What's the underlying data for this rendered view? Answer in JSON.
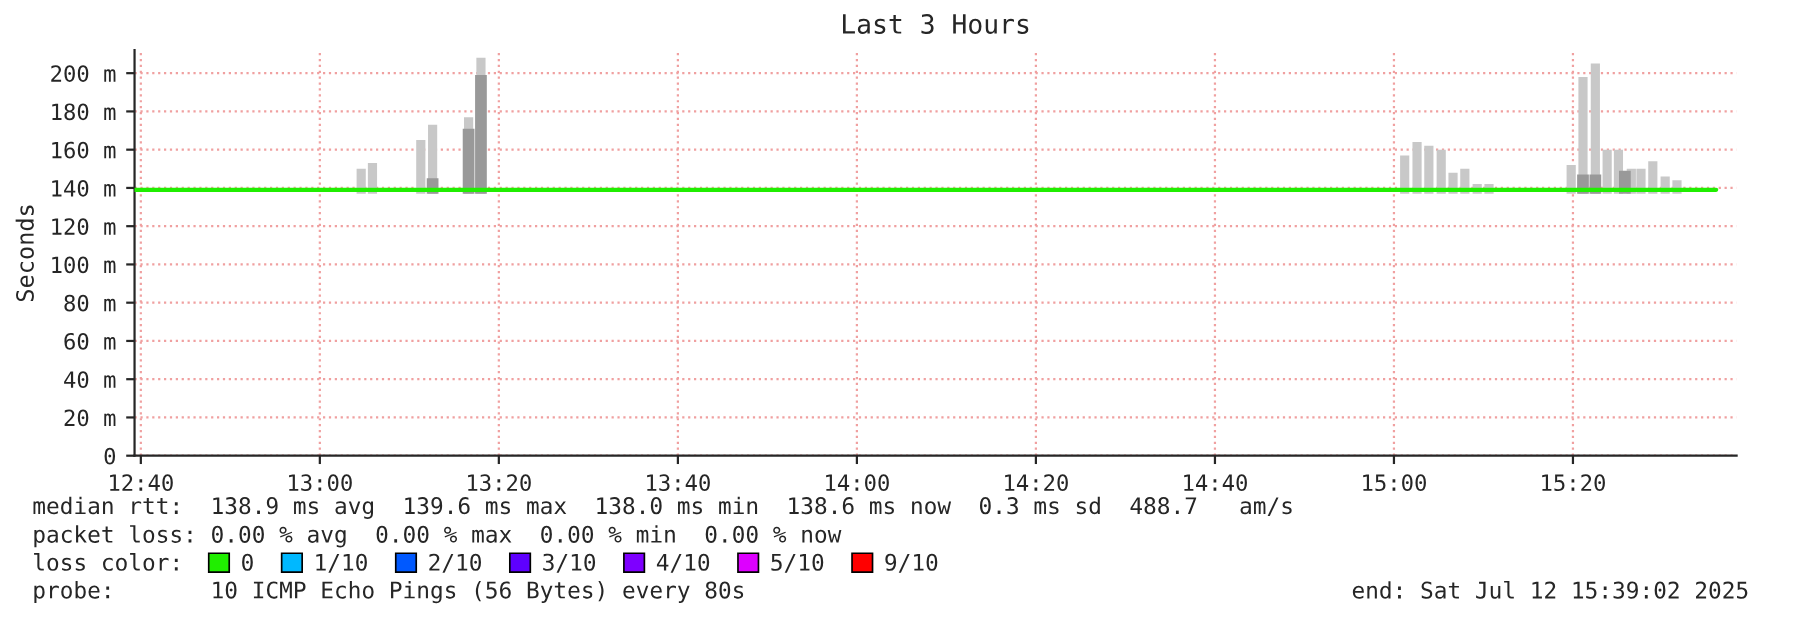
{
  "chart_data": {
    "type": "bar",
    "title": "Last 3 Hours",
    "ylabel": "Seconds",
    "legend_title": "loss color:",
    "xlim": [
      12.655,
      15.638
    ],
    "ylim": [
      0,
      212
    ],
    "xticks": [
      {
        "value": 12.6667,
        "label": "12:40"
      },
      {
        "value": 13,
        "label": "13:00"
      },
      {
        "value": 13.3333,
        "label": "13:20"
      },
      {
        "value": 13.6667,
        "label": "13:40"
      },
      {
        "value": 14,
        "label": "14:00"
      },
      {
        "value": 14.3333,
        "label": "14:20"
      },
      {
        "value": 14.6667,
        "label": "14:40"
      },
      {
        "value": 15,
        "label": "15:00"
      },
      {
        "value": 15.3333,
        "label": "15:20"
      }
    ],
    "yticks": [
      0,
      {
        "value": 20,
        "label": "20 m"
      },
      {
        "value": 40,
        "label": "40 m"
      },
      {
        "value": 60,
        "label": "60 m"
      },
      {
        "value": 80,
        "label": "80 m"
      },
      {
        "value": 100,
        "label": "100 m"
      },
      {
        "value": 120,
        "label": "120 m"
      },
      {
        "value": 140,
        "label": "140 m"
      },
      {
        "value": 160,
        "label": "160 m"
      },
      {
        "value": 180,
        "label": "180 m"
      },
      {
        "value": 200,
        "label": "200 m"
      }
    ],
    "grid": true,
    "legend": "bottom",
    "series": [
      {
        "color": "#c8c8c8",
        "x": [
          13.077,
          13.098,
          13.188,
          13.21,
          13.277,
          13.3,
          15.02,
          15.043,
          15.065,
          15.088,
          15.11,
          15.132,
          15.155,
          15.177,
          15.33,
          15.352,
          15.375,
          15.397,
          15.418,
          15.442,
          15.46,
          15.482,
          15.505,
          15.527
        ],
        "base": [
          137,
          137,
          137,
          137,
          137,
          137,
          137,
          137,
          137,
          137,
          137,
          137,
          137,
          137,
          137,
          137,
          137,
          137,
          137,
          137,
          137,
          137,
          137,
          137
        ],
        "values": [
          13,
          16,
          28,
          36,
          40,
          71,
          20,
          27,
          25,
          23,
          11,
          13,
          5,
          5,
          15,
          61,
          68,
          23,
          23,
          13,
          13,
          17,
          9,
          7
        ]
      },
      {
        "color": "#999999",
        "x": [
          13.21,
          13.277,
          13.3,
          15.352,
          15.375,
          15.43
        ],
        "base": [
          137,
          137,
          137,
          137,
          137,
          137
        ],
        "values": [
          8,
          34,
          62,
          10,
          10,
          12
        ]
      },
      {
        "type": "line",
        "name": "0",
        "color": "#20ee00",
        "x": [
          12.655,
          13.0,
          13.333,
          13.667,
          14.0,
          14.333,
          14.667,
          15.0,
          15.333,
          15.6
        ],
        "values": [
          139,
          139,
          139,
          139,
          139,
          139,
          139,
          139,
          139,
          139
        ]
      },
      {
        "type": "line",
        "name": "1/10",
        "color": "#00b8ff"
      },
      {
        "type": "line",
        "name": "2/10",
        "color": "#0059ff"
      },
      {
        "type": "line",
        "name": "3/10",
        "color": "#5e00ff"
      },
      {
        "type": "line",
        "name": "4/10",
        "color": "#7e00ff"
      },
      {
        "type": "line",
        "name": "5/10",
        "color": "#dd00ff"
      },
      {
        "type": "line",
        "name": "9/10",
        "color": "#ff0000"
      }
    ],
    "annotations": [
      "median rtt:  138.9 ms avg  139.6 ms max  138.0 ms min  138.6 ms now  0.3 ms sd  488.7   am/s",
      "packet loss: 0.00 % avg  0.00 % max  0.00 % min  0.00 % now",
      "probe:       10 ICMP Echo Pings (56 Bytes) every 80s",
      "end: Sat Jul 12 15:39:02 2025"
    ]
  }
}
